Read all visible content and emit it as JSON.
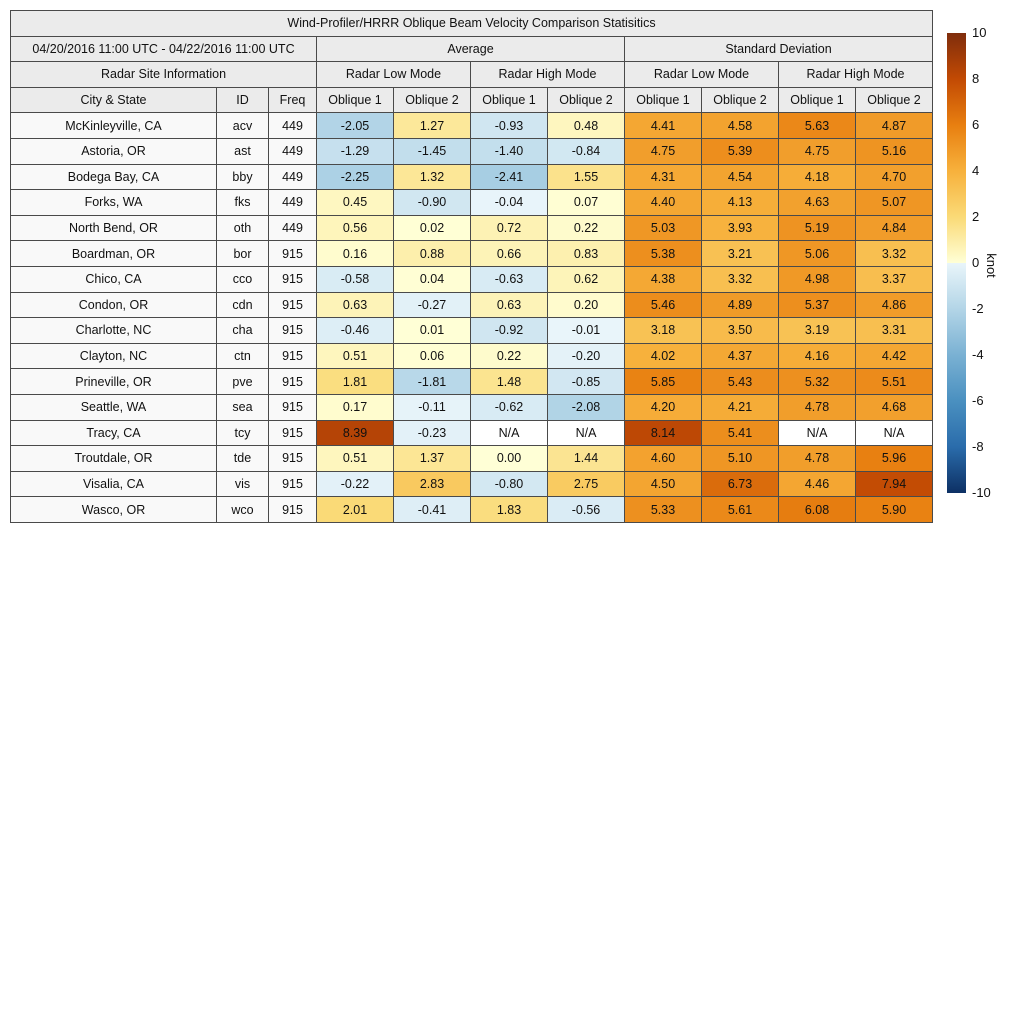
{
  "chart_data": {
    "type": "heatmap",
    "title": "Wind-Profiler/HRRR Oblique Beam Velocity Comparison Statisitics",
    "period": "04/20/2016 11:00 UTC - 04/22/2016 11:00 UTC",
    "section_headers": {
      "site_info": "Radar Site Information",
      "average": "Average",
      "stddev": "Standard Deviation"
    },
    "mode_headers": [
      "Radar Low Mode",
      "Radar High Mode",
      "Radar Low Mode",
      "Radar High Mode"
    ],
    "column_headers": {
      "city": "City & State",
      "id": "ID",
      "freq": "Freq",
      "oblique_pair": [
        "Oblique 1",
        "Oblique 2"
      ]
    },
    "rows": [
      {
        "city": "McKinleyville, CA",
        "id": "acv",
        "freq": "449",
        "values": [
          "-2.05",
          "1.27",
          "-0.93",
          "0.48",
          "4.41",
          "4.58",
          "5.63",
          "4.87"
        ]
      },
      {
        "city": "Astoria, OR",
        "id": "ast",
        "freq": "449",
        "values": [
          "-1.29",
          "-1.45",
          "-1.40",
          "-0.84",
          "4.75",
          "5.39",
          "4.75",
          "5.16"
        ]
      },
      {
        "city": "Bodega Bay, CA",
        "id": "bby",
        "freq": "449",
        "values": [
          "-2.25",
          "1.32",
          "-2.41",
          "1.55",
          "4.31",
          "4.54",
          "4.18",
          "4.70"
        ]
      },
      {
        "city": "Forks, WA",
        "id": "fks",
        "freq": "449",
        "values": [
          "0.45",
          "-0.90",
          "-0.04",
          "0.07",
          "4.40",
          "4.13",
          "4.63",
          "5.07"
        ]
      },
      {
        "city": "North Bend, OR",
        "id": "oth",
        "freq": "449",
        "values": [
          "0.56",
          "0.02",
          "0.72",
          "0.22",
          "5.03",
          "3.93",
          "5.19",
          "4.84"
        ]
      },
      {
        "city": "Boardman, OR",
        "id": "bor",
        "freq": "915",
        "values": [
          "0.16",
          "0.88",
          "0.66",
          "0.83",
          "5.38",
          "3.21",
          "5.06",
          "3.32"
        ]
      },
      {
        "city": "Chico, CA",
        "id": "cco",
        "freq": "915",
        "values": [
          "-0.58",
          "0.04",
          "-0.63",
          "0.62",
          "4.38",
          "3.32",
          "4.98",
          "3.37"
        ]
      },
      {
        "city": "Condon, OR",
        "id": "cdn",
        "freq": "915",
        "values": [
          "0.63",
          "-0.27",
          "0.63",
          "0.20",
          "5.46",
          "4.89",
          "5.37",
          "4.86"
        ]
      },
      {
        "city": "Charlotte, NC",
        "id": "cha",
        "freq": "915",
        "values": [
          "-0.46",
          "0.01",
          "-0.92",
          "-0.01",
          "3.18",
          "3.50",
          "3.19",
          "3.31"
        ]
      },
      {
        "city": "Clayton, NC",
        "id": "ctn",
        "freq": "915",
        "values": [
          "0.51",
          "0.06",
          "0.22",
          "-0.20",
          "4.02",
          "4.37",
          "4.16",
          "4.42"
        ]
      },
      {
        "city": "Prineville, OR",
        "id": "pve",
        "freq": "915",
        "values": [
          "1.81",
          "-1.81",
          "1.48",
          "-0.85",
          "5.85",
          "5.43",
          "5.32",
          "5.51"
        ]
      },
      {
        "city": "Seattle, WA",
        "id": "sea",
        "freq": "915",
        "values": [
          "0.17",
          "-0.11",
          "-0.62",
          "-2.08",
          "4.20",
          "4.21",
          "4.78",
          "4.68"
        ]
      },
      {
        "city": "Tracy, CA",
        "id": "tcy",
        "freq": "915",
        "values": [
          "8.39",
          "-0.23",
          "N/A",
          "N/A",
          "8.14",
          "5.41",
          "N/A",
          "N/A"
        ]
      },
      {
        "city": "Troutdale, OR",
        "id": "tde",
        "freq": "915",
        "values": [
          "0.51",
          "1.37",
          "0.00",
          "1.44",
          "4.60",
          "5.10",
          "4.78",
          "5.96"
        ]
      },
      {
        "city": "Visalia, CA",
        "id": "vis",
        "freq": "915",
        "values": [
          "-0.22",
          "2.83",
          "-0.80",
          "2.75",
          "4.50",
          "6.73",
          "4.46",
          "7.94"
        ]
      },
      {
        "city": "Wasco, OR",
        "id": "wco",
        "freq": "915",
        "values": [
          "2.01",
          "-0.41",
          "1.83",
          "-0.56",
          "5.33",
          "5.61",
          "6.08",
          "5.90"
        ]
      }
    ],
    "colorbar": {
      "label": "knot",
      "min": -10,
      "max": 10,
      "ticks": [
        10,
        8,
        6,
        4,
        2,
        0,
        -2,
        -4,
        -6,
        -8,
        -10
      ],
      "positive_anchors": [
        [
          0,
          "#FFFFD6"
        ],
        [
          2,
          "#FADA77"
        ],
        [
          4,
          "#F7B13C"
        ],
        [
          6,
          "#E87F10"
        ],
        [
          8,
          "#C24A04"
        ],
        [
          10,
          "#7F2D0C"
        ]
      ],
      "negative_anchors": [
        [
          0,
          "#E9F5FA"
        ],
        [
          -2,
          "#B3D5E7"
        ],
        [
          -4,
          "#7AB1D3"
        ],
        [
          -6,
          "#4A90C0"
        ],
        [
          -8,
          "#2A6CAB"
        ],
        [
          -10,
          "#0D3064"
        ]
      ],
      "na_color": "#FFFFFF"
    }
  }
}
